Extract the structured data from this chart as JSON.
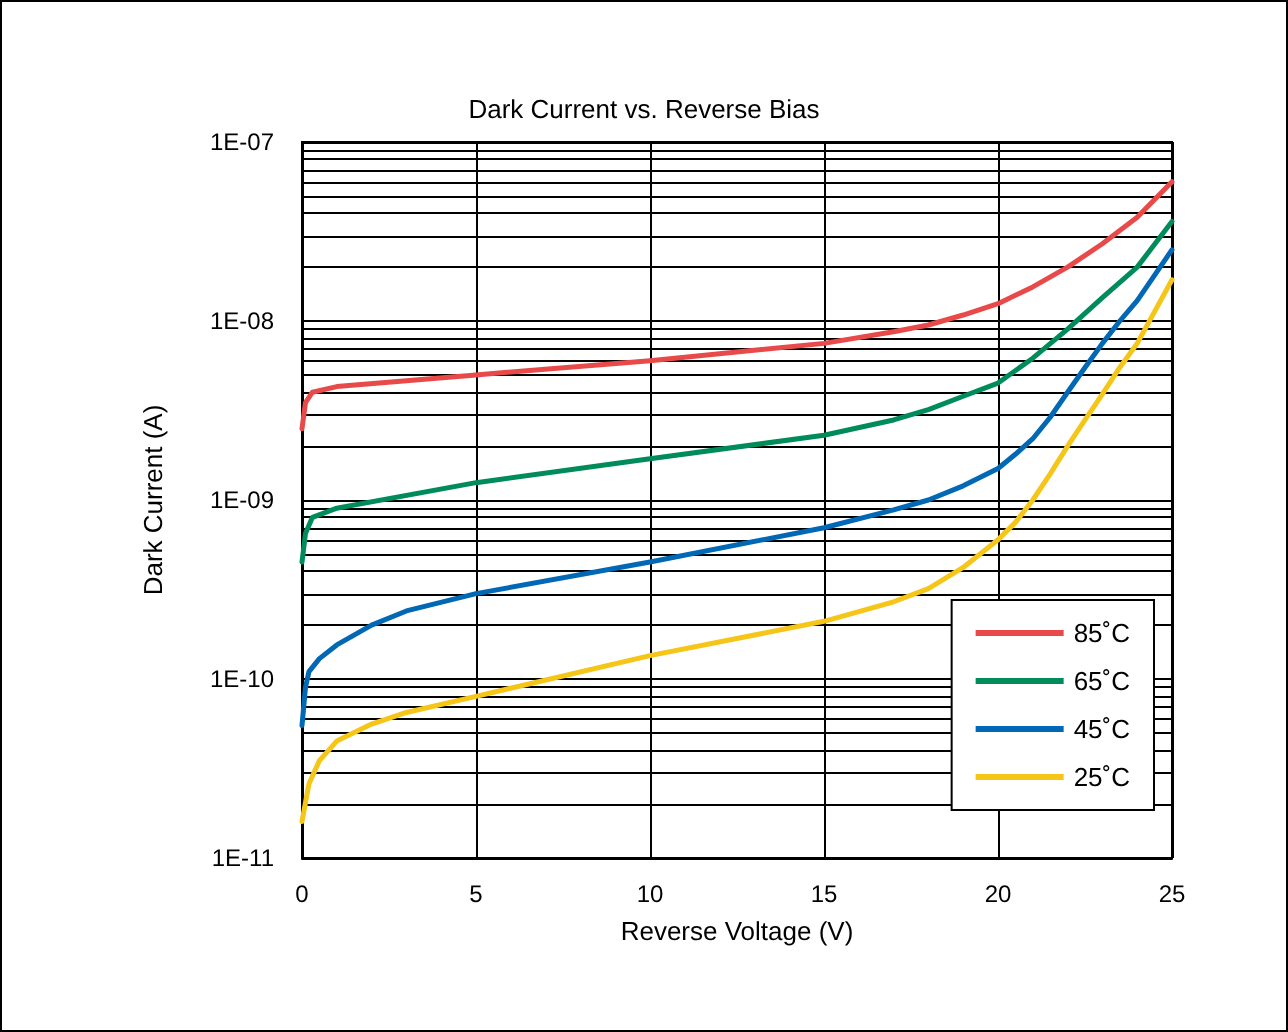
{
  "chart_data": {
    "type": "line",
    "title": "Dark Current vs. Reverse Bias",
    "xlabel": "Reverse Voltage (V)",
    "ylabel": "Dark Current (A)",
    "log": "y",
    "xlim": [
      0,
      25
    ],
    "xticks": [
      0,
      5,
      10,
      15,
      20,
      25
    ],
    "ylim": [
      1e-11,
      1e-07
    ],
    "yticks": [
      {
        "value": 1e-11,
        "label": "1E-11"
      },
      {
        "value": 2e-11,
        "label": null
      },
      {
        "value": 3e-11,
        "label": null
      },
      {
        "value": 4e-11,
        "label": null
      },
      {
        "value": 5e-11,
        "label": null
      },
      {
        "value": 6e-11,
        "label": null
      },
      {
        "value": 7e-11,
        "label": null
      },
      {
        "value": 8e-11,
        "label": null
      },
      {
        "value": 9e-11,
        "label": null
      },
      {
        "value": 1e-10,
        "label": "1E-10"
      },
      {
        "value": 2e-10,
        "label": null
      },
      {
        "value": 3e-10,
        "label": null
      },
      {
        "value": 4e-10,
        "label": null
      },
      {
        "value": 5e-10,
        "label": null
      },
      {
        "value": 6e-10,
        "label": null
      },
      {
        "value": 7e-10,
        "label": null
      },
      {
        "value": 8e-10,
        "label": null
      },
      {
        "value": 9e-10,
        "label": null
      },
      {
        "value": 1e-09,
        "label": "1E-09"
      },
      {
        "value": 2e-09,
        "label": null
      },
      {
        "value": 3e-09,
        "label": null
      },
      {
        "value": 4e-09,
        "label": null
      },
      {
        "value": 5e-09,
        "label": null
      },
      {
        "value": 6e-09,
        "label": null
      },
      {
        "value": 7e-09,
        "label": null
      },
      {
        "value": 8e-09,
        "label": null
      },
      {
        "value": 9e-09,
        "label": null
      },
      {
        "value": 1e-08,
        "label": "1E-08"
      },
      {
        "value": 2e-08,
        "label": null
      },
      {
        "value": 3e-08,
        "label": null
      },
      {
        "value": 4e-08,
        "label": null
      },
      {
        "value": 5e-08,
        "label": null
      },
      {
        "value": 6e-08,
        "label": null
      },
      {
        "value": 7e-08,
        "label": null
      },
      {
        "value": 8e-08,
        "label": null
      },
      {
        "value": 9e-08,
        "label": null
      },
      {
        "value": 1e-07,
        "label": "1E-07"
      }
    ],
    "grid": true,
    "legend": "bottom right",
    "series": [
      {
        "name": "85˚C",
        "color": "#e84a4a",
        "x": [
          0,
          0.1,
          0.3,
          1,
          5,
          10,
          15,
          17,
          18,
          19,
          20,
          21,
          22,
          23,
          24,
          25
        ],
        "values": [
          2.5e-09,
          3.5e-09,
          4e-09,
          4.3e-09,
          5e-09,
          6e-09,
          7.5e-09,
          8.7e-09,
          9.5e-09,
          1.08e-08,
          1.25e-08,
          1.55e-08,
          2e-08,
          2.7e-08,
          3.8e-08,
          6e-08
        ]
      },
      {
        "name": "65˚C",
        "color": "#008c5a",
        "x": [
          0,
          0.1,
          0.3,
          1,
          5,
          10,
          15,
          17,
          18,
          19,
          20,
          21,
          22,
          23,
          24,
          25
        ],
        "values": [
          4.5e-10,
          6.5e-10,
          8e-10,
          9e-10,
          1.25e-09,
          1.7e-09,
          2.3e-09,
          2.8e-09,
          3.2e-09,
          3.8e-09,
          4.5e-09,
          6.2e-09,
          9e-09,
          1.35e-08,
          2e-08,
          3.6e-08
        ]
      },
      {
        "name": "45˚C",
        "color": "#0068b4",
        "x": [
          0,
          0.1,
          0.2,
          0.5,
          1,
          2,
          3,
          5,
          10,
          15,
          17,
          18,
          19,
          20,
          20.5,
          21,
          21.5,
          22,
          22.5,
          23,
          23.5,
          24,
          25
        ],
        "values": [
          5.5e-11,
          9e-11,
          1.1e-10,
          1.3e-10,
          1.55e-10,
          2e-10,
          2.4e-10,
          3e-10,
          4.5e-10,
          7e-10,
          8.8e-10,
          1e-09,
          1.2e-09,
          1.5e-09,
          1.8e-09,
          2.2e-09,
          2.9e-09,
          4e-09,
          5.5e-09,
          7.5e-09,
          1e-08,
          1.3e-08,
          2.5e-08
        ]
      },
      {
        "name": "25˚C",
        "color": "#f5c518",
        "x": [
          0,
          0.2,
          0.5,
          1,
          2,
          3,
          5,
          10,
          15,
          17,
          18,
          19,
          20,
          20.5,
          21,
          21.5,
          22,
          22.5,
          23,
          23.5,
          24,
          25
        ],
        "values": [
          1.6e-11,
          2.6e-11,
          3.5e-11,
          4.5e-11,
          5.6e-11,
          6.5e-11,
          8e-11,
          1.35e-10,
          2.1e-10,
          2.7e-10,
          3.2e-10,
          4.2e-10,
          6e-10,
          7.5e-10,
          1e-09,
          1.4e-09,
          2e-09,
          2.8e-09,
          3.9e-09,
          5.5e-09,
          7.5e-09,
          1.7e-08
        ]
      }
    ]
  }
}
